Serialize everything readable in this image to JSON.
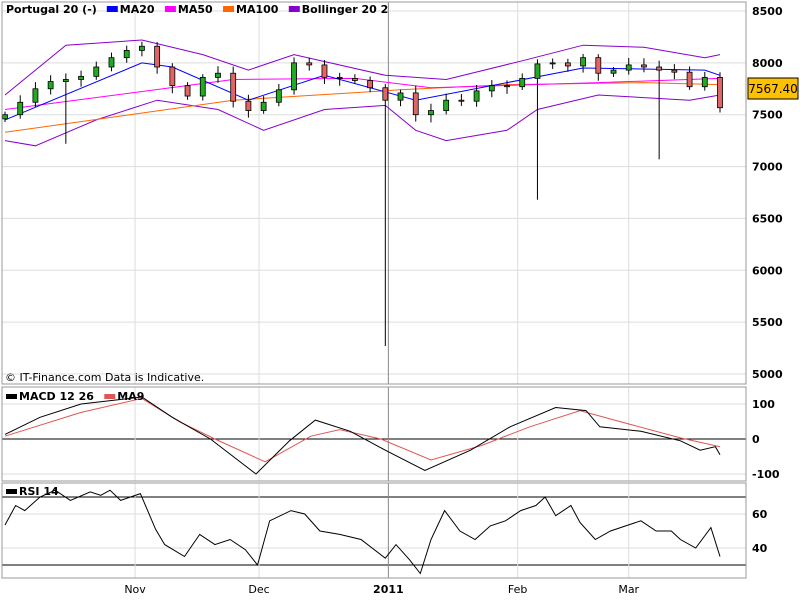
{
  "chart_data": {
    "type": "candlestick",
    "title": "Portugal 20 (-)",
    "copyright": "© IT-Finance.com Data is Indicative.",
    "last_price_label": "7567.40",
    "colors": {
      "up": "#22aa22",
      "down": "#e06666",
      "ma20": "#0000ff",
      "ma50": "#ff00ff",
      "ma100": "#ff6600",
      "bollinger": "#8800cc",
      "macd": "#000000",
      "signal": "#e05555",
      "rsi": "#000000",
      "last_price_bg": "#ffc000"
    },
    "legend": [
      {
        "label": "MA20",
        "color": "#0000ff"
      },
      {
        "label": "MA50",
        "color": "#ff00ff"
      },
      {
        "label": "MA100",
        "color": "#ff6600"
      },
      {
        "label": "Bollinger 20 2",
        "color": "#8800cc"
      }
    ],
    "price_axis": {
      "ylim": [
        5000,
        8500
      ],
      "ticks": [
        "8500",
        "8000",
        "7500",
        "7000",
        "6500",
        "6000",
        "5500",
        "5000"
      ]
    },
    "x_axis": {
      "day_range": [
        0,
        47
      ],
      "ticks": [
        {
          "label": "Nov",
          "day": 8.55
        },
        {
          "label": "Dec",
          "day": 16.7
        },
        {
          "label": "2011",
          "day": 25.2,
          "strong": true
        },
        {
          "label": "Feb",
          "day": 33.7
        },
        {
          "label": "Mar",
          "day": 41
        }
      ]
    },
    "closes": [
      7500,
      7620,
      7750,
      7820,
      7840,
      7870,
      7960,
      8050,
      8120,
      8160,
      7960,
      7780,
      7680,
      7860,
      7900,
      7630,
      7540,
      7620,
      7740,
      8000,
      7980,
      7860,
      7850,
      7830,
      7760,
      7640,
      7710,
      7500,
      7540,
      7640,
      7630,
      7730,
      7780,
      7770,
      7850,
      7990,
      8000,
      7970,
      8050,
      7900,
      7930,
      7980,
      7960,
      7930,
      7910,
      7770,
      7860,
      7567.4
    ],
    "spikes": [
      {
        "day": 4,
        "low": 7220
      },
      {
        "day": 25,
        "low": 5270
      },
      {
        "day": 35,
        "low": 6680
      },
      {
        "day": 43,
        "low": 7070
      }
    ],
    "overlays": {
      "ma20": [
        [
          0,
          7450
        ],
        [
          9,
          8000
        ],
        [
          11,
          7960
        ],
        [
          16,
          7640
        ],
        [
          21,
          7880
        ],
        [
          27,
          7640
        ],
        [
          38,
          7950
        ],
        [
          46,
          7930
        ],
        [
          47,
          7880
        ]
      ],
      "ma50": [
        [
          0,
          7550
        ],
        [
          15,
          7840
        ],
        [
          23,
          7850
        ],
        [
          28,
          7760
        ],
        [
          39,
          7810
        ],
        [
          47,
          7850
        ]
      ],
      "ma100": [
        [
          0,
          7330
        ],
        [
          15,
          7640
        ],
        [
          26,
          7740
        ],
        [
          33,
          7790
        ],
        [
          42,
          7810
        ],
        [
          47,
          7790
        ]
      ],
      "bb_upper": [
        [
          0,
          7690
        ],
        [
          4,
          8170
        ],
        [
          9,
          8220
        ],
        [
          13,
          8080
        ],
        [
          16,
          7930
        ],
        [
          19,
          8080
        ],
        [
          25,
          7880
        ],
        [
          29,
          7840
        ],
        [
          34,
          8020
        ],
        [
          38,
          8170
        ],
        [
          42,
          8150
        ],
        [
          46,
          8050
        ],
        [
          47,
          8080
        ]
      ],
      "bb_lower": [
        [
          0,
          7250
        ],
        [
          2,
          7200
        ],
        [
          6,
          7450
        ],
        [
          10,
          7640
        ],
        [
          14,
          7550
        ],
        [
          17,
          7350
        ],
        [
          21,
          7550
        ],
        [
          25,
          7590
        ],
        [
          27,
          7350
        ],
        [
          29,
          7250
        ],
        [
          33,
          7350
        ],
        [
          35,
          7550
        ],
        [
          39,
          7690
        ],
        [
          45,
          7640
        ],
        [
          47,
          7690
        ]
      ]
    },
    "macd": {
      "label": "MACD 12 26",
      "signal_label": "MA9",
      "ylim": [
        -110,
        140
      ],
      "ticks": [
        "100",
        "0",
        "-100"
      ],
      "macd": [
        [
          0,
          13
        ],
        [
          2.3,
          62
        ],
        [
          5,
          100
        ],
        [
          9,
          120
        ],
        [
          11,
          62
        ],
        [
          13.5,
          0
        ],
        [
          16.5,
          -100
        ],
        [
          18.7,
          -5
        ],
        [
          20.4,
          54
        ],
        [
          22.7,
          22
        ],
        [
          25,
          -32
        ],
        [
          27.6,
          -90
        ],
        [
          30.6,
          -32
        ],
        [
          33.2,
          35
        ],
        [
          36.2,
          90
        ],
        [
          38.2,
          81
        ],
        [
          39.1,
          35
        ],
        [
          41.8,
          22
        ],
        [
          44.4,
          -5
        ],
        [
          45.7,
          -32
        ],
        [
          46.7,
          -22
        ],
        [
          47,
          -45
        ]
      ],
      "signal": [
        [
          0,
          8
        ],
        [
          5,
          76
        ],
        [
          9,
          116
        ],
        [
          11.5,
          49
        ],
        [
          13.8,
          0
        ],
        [
          17.1,
          -65
        ],
        [
          20.1,
          8
        ],
        [
          22,
          27
        ],
        [
          24.7,
          0
        ],
        [
          28,
          -60
        ],
        [
          31.3,
          -19
        ],
        [
          34.5,
          35
        ],
        [
          37.8,
          81
        ],
        [
          40.5,
          49
        ],
        [
          44.4,
          3
        ],
        [
          47,
          -22
        ]
      ]
    },
    "rsi": {
      "label": "RSI 14",
      "ylim": [
        22,
        78
      ],
      "ticks": [
        "60",
        "40"
      ],
      "bands": [
        70,
        30
      ],
      "values": [
        [
          0,
          53.5
        ],
        [
          0.7,
          65
        ],
        [
          1.3,
          62
        ],
        [
          2.3,
          70
        ],
        [
          3.3,
          74
        ],
        [
          4.3,
          68
        ],
        [
          5.6,
          73
        ],
        [
          6.3,
          71
        ],
        [
          6.9,
          74
        ],
        [
          7.6,
          68
        ],
        [
          8.9,
          72
        ],
        [
          9.9,
          51
        ],
        [
          10.5,
          42
        ],
        [
          11.8,
          35
        ],
        [
          12.8,
          48
        ],
        [
          13.8,
          42
        ],
        [
          14.8,
          45
        ],
        [
          15.8,
          39
        ],
        [
          16.6,
          30
        ],
        [
          17.4,
          56
        ],
        [
          18.8,
          62
        ],
        [
          19.7,
          60
        ],
        [
          20.7,
          50
        ],
        [
          22,
          48
        ],
        [
          23.4,
          45
        ],
        [
          25,
          34
        ],
        [
          25.7,
          42
        ],
        [
          26.6,
          33
        ],
        [
          27.3,
          25
        ],
        [
          28,
          45
        ],
        [
          28.9,
          62
        ],
        [
          29.9,
          50
        ],
        [
          30.9,
          45
        ],
        [
          31.9,
          53
        ],
        [
          32.9,
          56
        ],
        [
          33.9,
          62
        ],
        [
          34.9,
          65
        ],
        [
          35.5,
          70
        ],
        [
          36.2,
          59
        ],
        [
          37.2,
          65
        ],
        [
          37.8,
          55
        ],
        [
          38.8,
          45
        ],
        [
          39.8,
          50
        ],
        [
          40.8,
          53
        ],
        [
          41.8,
          56
        ],
        [
          42.8,
          50
        ],
        [
          43.8,
          50
        ],
        [
          44.4,
          45
        ],
        [
          45.4,
          40
        ],
        [
          46.4,
          52
        ],
        [
          47,
          35
        ]
      ]
    }
  }
}
